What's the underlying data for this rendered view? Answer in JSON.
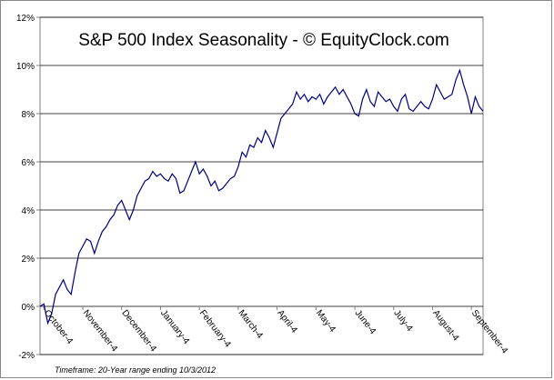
{
  "chart_data": {
    "type": "line",
    "title": "S&P 500 Index Seasonality - © EquityClock.com",
    "footnote": "Timeframe: 20-Year range ending 10/3/2012",
    "categories": [
      null,
      "October-4",
      null,
      null,
      null,
      null,
      null,
      null,
      null,
      null,
      null,
      "November-4",
      null,
      null,
      null,
      null,
      null,
      null,
      null,
      null,
      null,
      "December-4",
      null,
      null,
      null,
      null,
      null,
      null,
      null,
      null,
      null,
      "January-4",
      null,
      null,
      null,
      null,
      null,
      null,
      null,
      null,
      null,
      "February-4",
      null,
      null,
      null,
      null,
      null,
      null,
      null,
      null,
      null,
      "March-4",
      null,
      null,
      null,
      null,
      null,
      null,
      null,
      null,
      null,
      "April-4",
      null,
      null,
      null,
      null,
      null,
      null,
      null,
      null,
      null,
      "May-4",
      null,
      null,
      null,
      null,
      null,
      null,
      null,
      null,
      null,
      "June-4",
      null,
      null,
      null,
      null,
      null,
      null,
      null,
      null,
      null,
      "July-4",
      null,
      null,
      null,
      null,
      null,
      null,
      null,
      null,
      null,
      "August-4",
      null,
      null,
      null,
      null,
      null,
      null,
      null,
      null,
      null,
      "September-4",
      null,
      null,
      null
    ],
    "values": [
      0.0,
      0.1,
      -0.7,
      -0.3,
      0.5,
      0.8,
      1.1,
      0.7,
      0.5,
      1.4,
      2.2,
      2.5,
      2.8,
      2.7,
      2.2,
      2.7,
      3.1,
      3.3,
      3.6,
      3.8,
      4.2,
      4.4,
      4.0,
      3.6,
      4.0,
      4.6,
      4.9,
      5.2,
      5.3,
      5.6,
      5.4,
      5.5,
      5.3,
      5.2,
      5.5,
      5.3,
      4.7,
      4.8,
      5.2,
      5.6,
      6.0,
      5.5,
      5.7,
      5.4,
      5.0,
      5.2,
      4.8,
      4.9,
      5.1,
      5.3,
      5.4,
      5.8,
      6.4,
      6.2,
      6.7,
      6.6,
      7.0,
      6.8,
      7.3,
      7.0,
      6.6,
      7.2,
      7.8,
      8.0,
      8.2,
      8.4,
      8.9,
      8.6,
      8.8,
      8.5,
      8.7,
      8.6,
      8.8,
      8.4,
      8.7,
      8.9,
      9.1,
      8.8,
      9.0,
      8.7,
      8.4,
      8.0,
      7.9,
      8.6,
      9.0,
      8.5,
      8.3,
      8.9,
      8.7,
      8.5,
      8.6,
      8.3,
      8.1,
      8.6,
      8.8,
      8.2,
      8.1,
      8.3,
      8.5,
      8.3,
      8.2,
      8.6,
      9.2,
      8.9,
      8.6,
      8.7,
      8.8,
      9.4,
      9.8,
      9.2,
      8.7,
      8.0,
      8.7,
      8.3,
      8.1
    ],
    "color": "#000080",
    "ylim": [
      -2,
      12
    ],
    "yticks": [
      {
        "value": -2,
        "label": "-2%"
      },
      {
        "value": 0,
        "label": "0%"
      },
      {
        "value": 2,
        "label": "2%"
      },
      {
        "value": 4,
        "label": "4%"
      },
      {
        "value": 6,
        "label": "6%"
      },
      {
        "value": 8,
        "label": "8%"
      },
      {
        "value": 10,
        "label": "10%"
      },
      {
        "value": 12,
        "label": "12%"
      }
    ],
    "grid": true
  }
}
